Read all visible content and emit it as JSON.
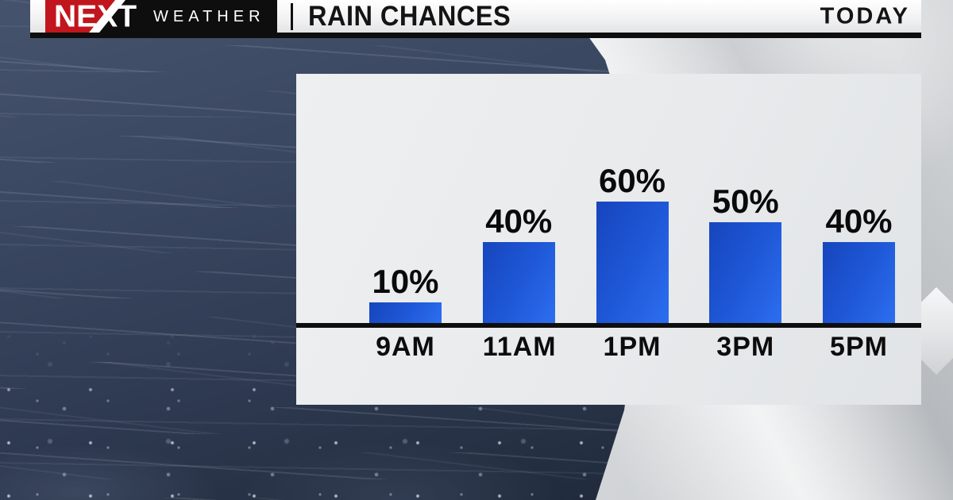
{
  "header": {
    "brand": {
      "next": "NEXT",
      "weather": "WEATHER"
    },
    "separator": "|",
    "title": "RAIN CHANCES",
    "right_label": "TODAY"
  },
  "colors": {
    "brand_red": "#c1161d",
    "header_black": "#0e0e0e",
    "axis_black": "#0e0e0e",
    "panel_bg": "#e8eaec",
    "bar_blue_dark": "#1745bd",
    "bar_blue_mid": "#1e57d6",
    "bar_blue_light": "#2c6ef0",
    "bg_navy": "#36445e"
  },
  "chart_data": {
    "type": "bar",
    "title": "RAIN CHANCES",
    "subtitle": "TODAY",
    "categories": [
      "9AM",
      "11AM",
      "1PM",
      "3PM",
      "5PM"
    ],
    "values": [
      10,
      40,
      60,
      50,
      40
    ],
    "value_labels": [
      "10%",
      "40%",
      "60%",
      "50%",
      "40%"
    ],
    "xlabel": "",
    "ylabel": "",
    "ylim": [
      0,
      100
    ],
    "grid": false,
    "legend": false,
    "bar_color": "#1e57d6",
    "label_position": "above-bar"
  }
}
